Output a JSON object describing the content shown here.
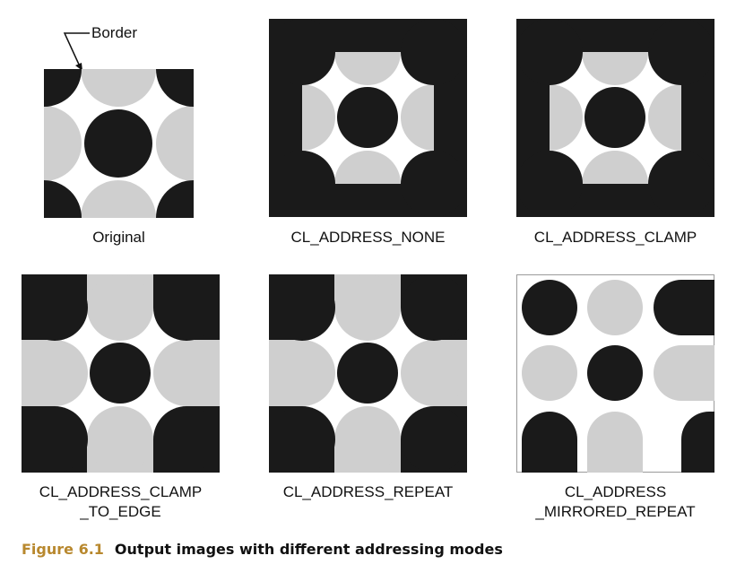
{
  "annotation": {
    "border_label": "Border"
  },
  "panels": [
    {
      "caption_lines": [
        "Original"
      ]
    },
    {
      "caption_lines": [
        "CL_ADDRESS_NONE"
      ]
    },
    {
      "caption_lines": [
        "CL_ADDRESS_CLAMP"
      ]
    },
    {
      "caption_lines": [
        "CL_ADDRESS_CLAMP",
        "_TO_EDGE"
      ]
    },
    {
      "caption_lines": [
        "CL_ADDRESS_REPEAT"
      ]
    },
    {
      "caption_lines": [
        "CL_ADDRESS",
        "_MIRRORED_REPEAT"
      ]
    }
  ],
  "figure": {
    "number": "Figure 6.1",
    "caption": "Output images with different addressing modes"
  },
  "colors": {
    "dark": "#1a1a1a",
    "gray": "#cfcfcf",
    "white": "#ffffff",
    "figure_number": "#b8882e"
  }
}
